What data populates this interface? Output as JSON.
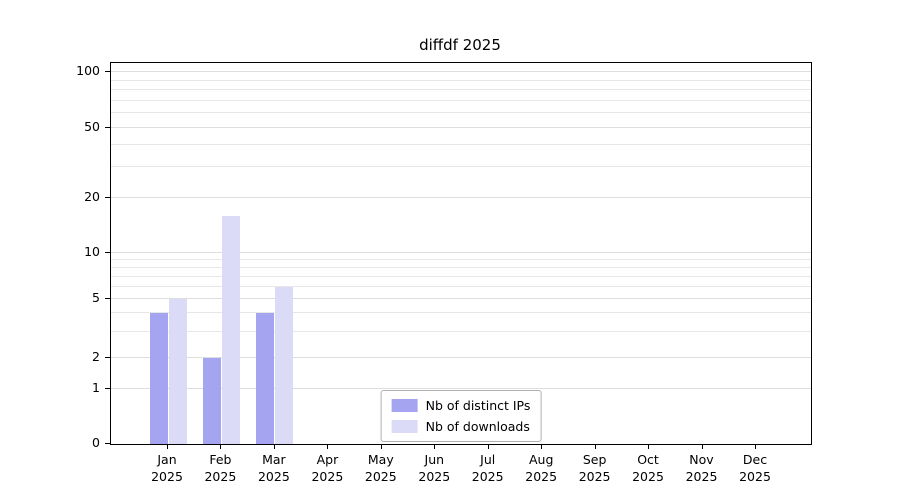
{
  "chart_data": {
    "type": "bar",
    "title": "diffdf 2025",
    "categories": [
      "Jan 2025",
      "Feb 2025",
      "Mar 2025",
      "Apr 2025",
      "May 2025",
      "Jun 2025",
      "Jul 2025",
      "Aug 2025",
      "Sep 2025",
      "Oct 2025",
      "Nov 2025",
      "Dec 2025"
    ],
    "series": [
      {
        "name": "Nb of distinct IPs",
        "color": "#a4a4f0",
        "values": [
          4,
          2,
          4,
          0,
          0,
          0,
          0,
          0,
          0,
          0,
          0,
          0
        ]
      },
      {
        "name": "Nb of downloads",
        "color": "#dbdbf8",
        "values": [
          5,
          16,
          6,
          0,
          0,
          0,
          0,
          0,
          0,
          0,
          0,
          0
        ]
      }
    ],
    "yticks": [
      0,
      1,
      2,
      5,
      10,
      20,
      50,
      100
    ],
    "ylim": [
      0,
      107
    ],
    "yscale": "log-like",
    "grid": true,
    "legend_position": "bottom-center",
    "xlabel": "",
    "ylabel": ""
  }
}
